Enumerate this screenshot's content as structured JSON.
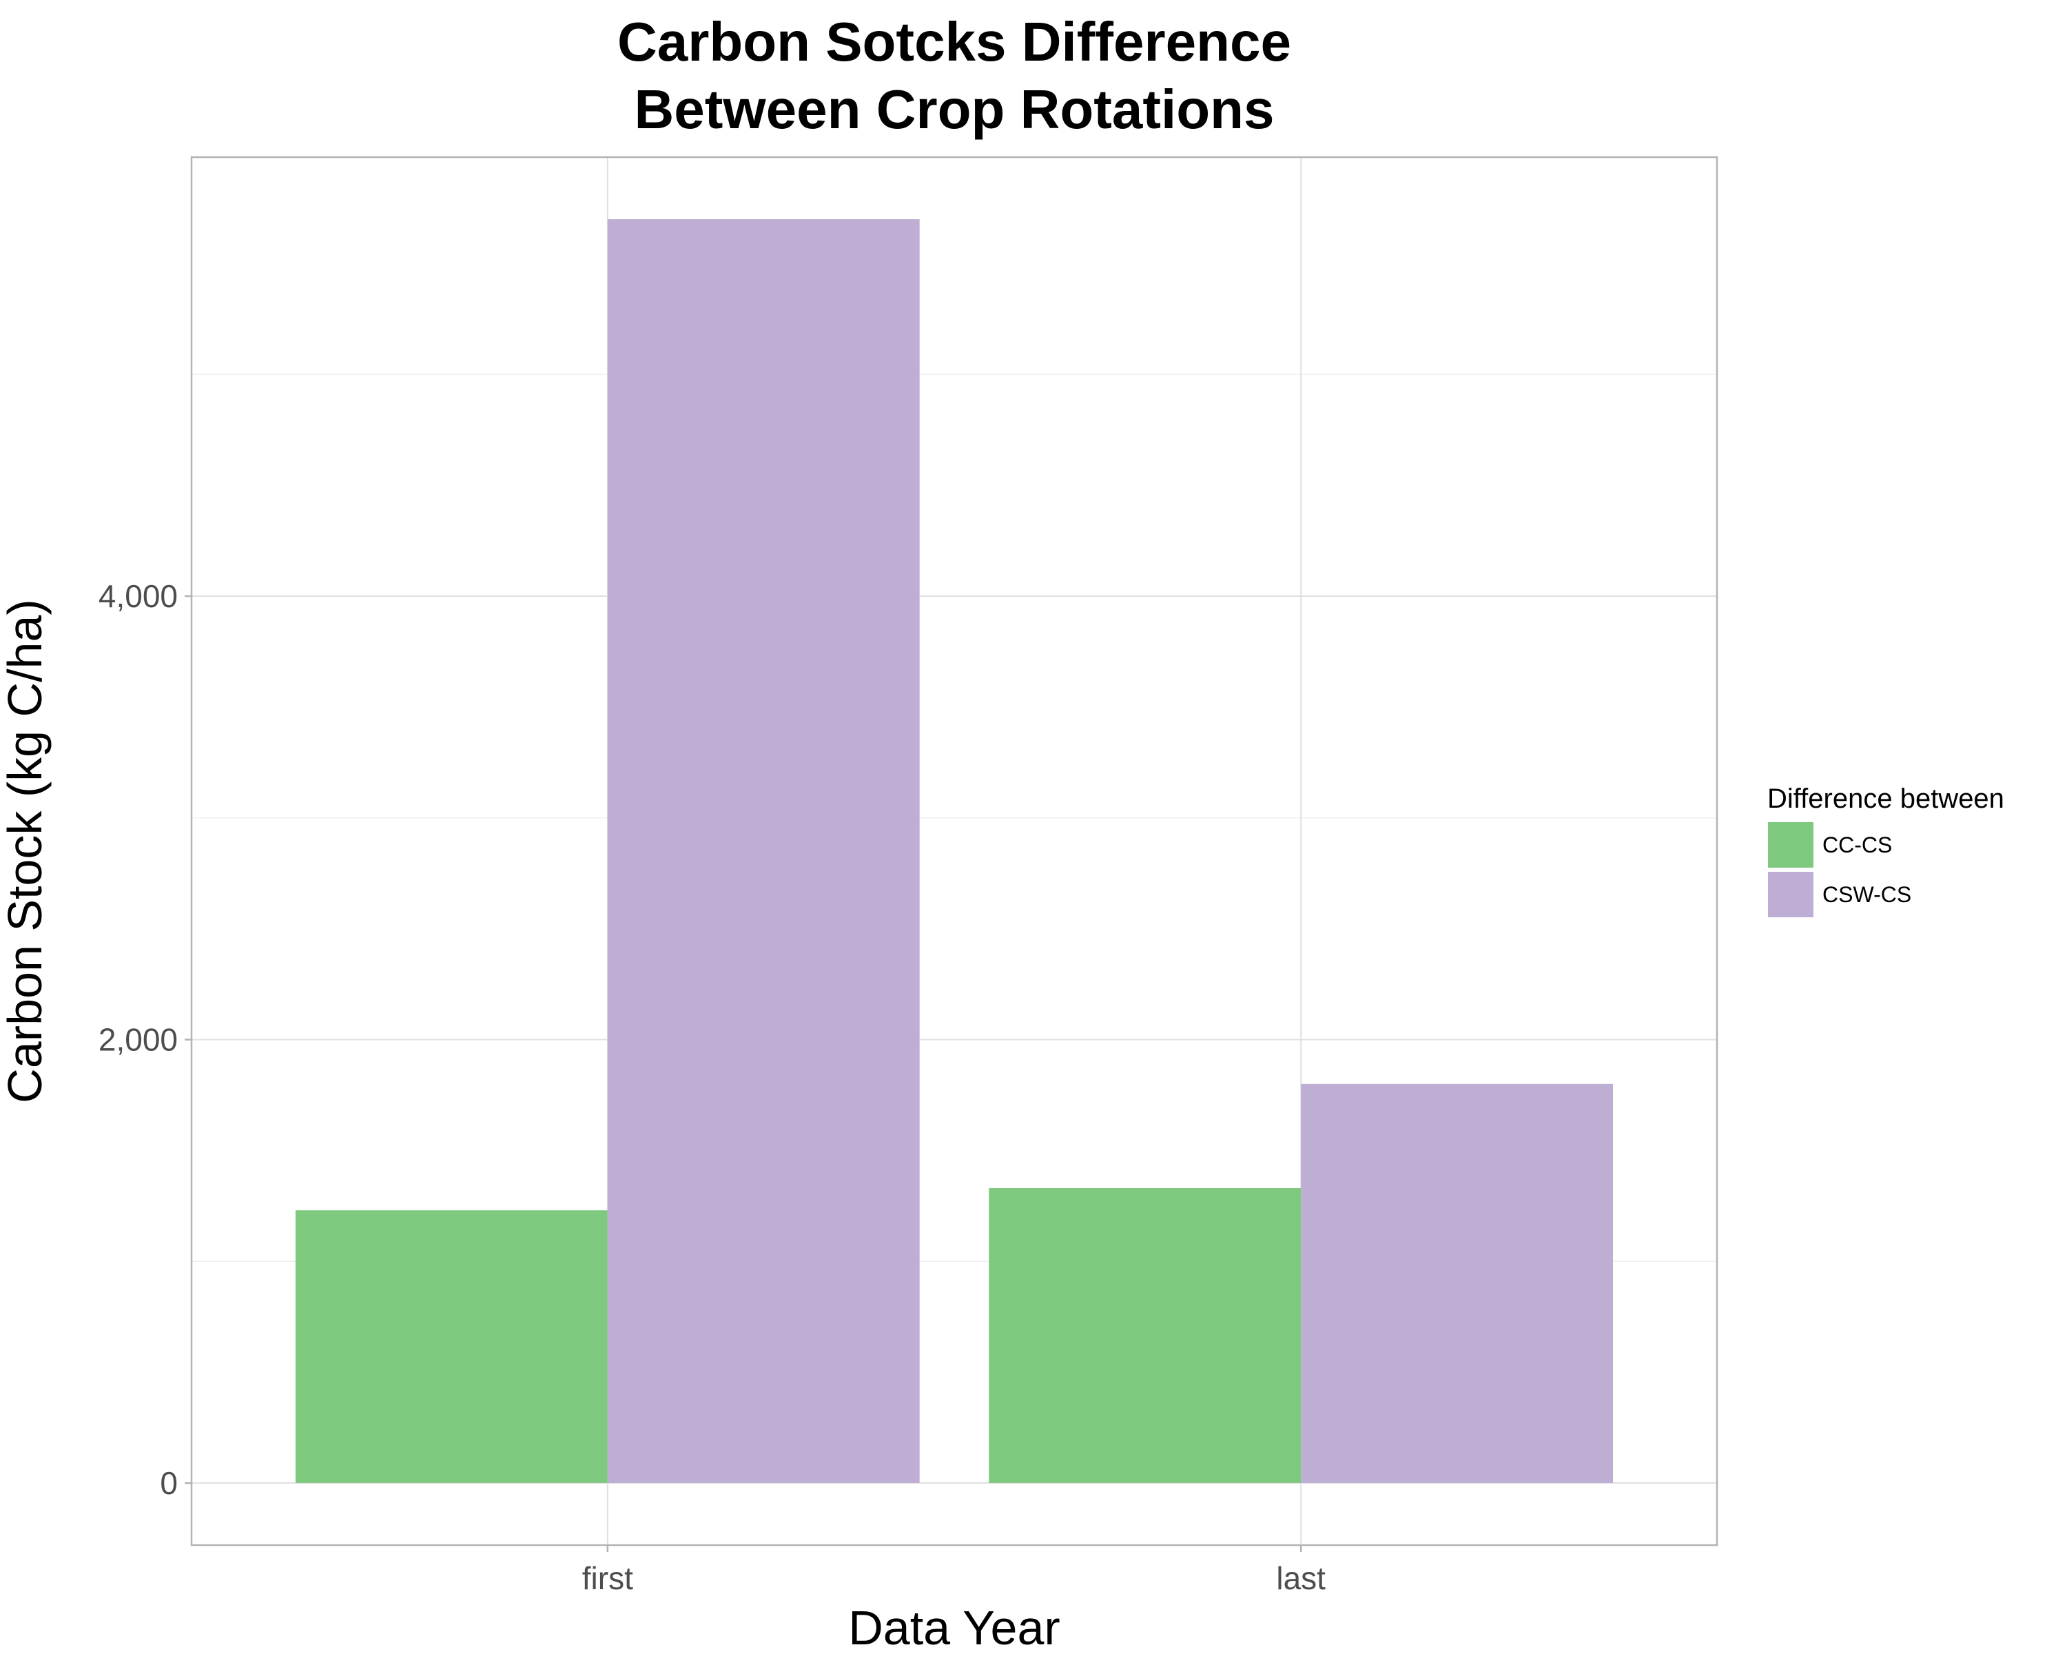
{
  "chart_data": {
    "type": "bar",
    "title_lines": [
      "Carbon Sotcks Difference",
      "Between Crop Rotations"
    ],
    "xlabel": "Data Year",
    "ylabel": "Carbon Stock (kg C/ha)",
    "categories": [
      "first",
      "last"
    ],
    "series": [
      {
        "name": "CC-CS",
        "color": "#7fc97f",
        "values": [
          1230,
          1330
        ]
      },
      {
        "name": "CSW-CS",
        "color": "#beaed4",
        "values": [
          5700,
          1800
        ]
      }
    ],
    "ylim": [
      -280,
      5980
    ],
    "yticks": [
      0,
      2000,
      4000
    ],
    "ytick_labels": [
      "0",
      "2,000",
      "4,000"
    ],
    "minor_yticks": [
      1000,
      3000,
      5000
    ],
    "grid": true,
    "legend": {
      "title": "Difference between",
      "placement": "right"
    }
  }
}
